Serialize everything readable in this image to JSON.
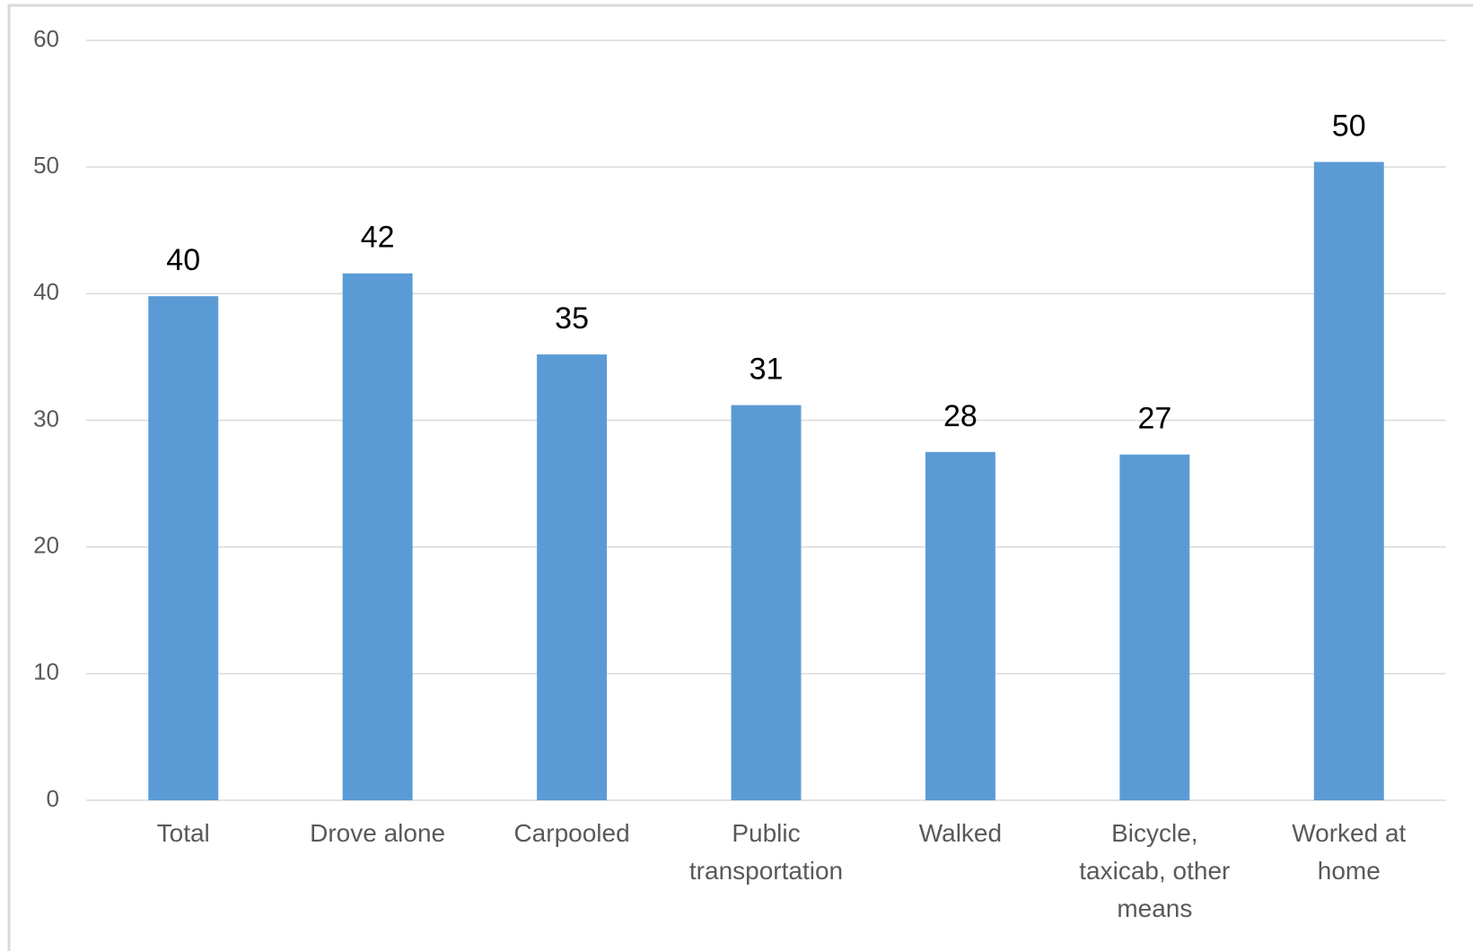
{
  "chart_data": {
    "type": "bar",
    "categories": [
      "Total",
      "Drove alone",
      "Carpooled",
      "Public transportation",
      "Walked",
      "Bicycle, taxicab, other means",
      "Worked at home"
    ],
    "values": [
      39.8,
      41.6,
      35.2,
      31.2,
      27.5,
      27.3,
      50.4
    ],
    "value_labels": [
      "40",
      "42",
      "35",
      "31",
      "28",
      "27",
      "50"
    ],
    "color": "#5b9bd5",
    "ylim": [
      0,
      60
    ],
    "yticks": [
      0,
      10,
      20,
      30,
      40,
      50,
      60
    ],
    "grid": true
  }
}
